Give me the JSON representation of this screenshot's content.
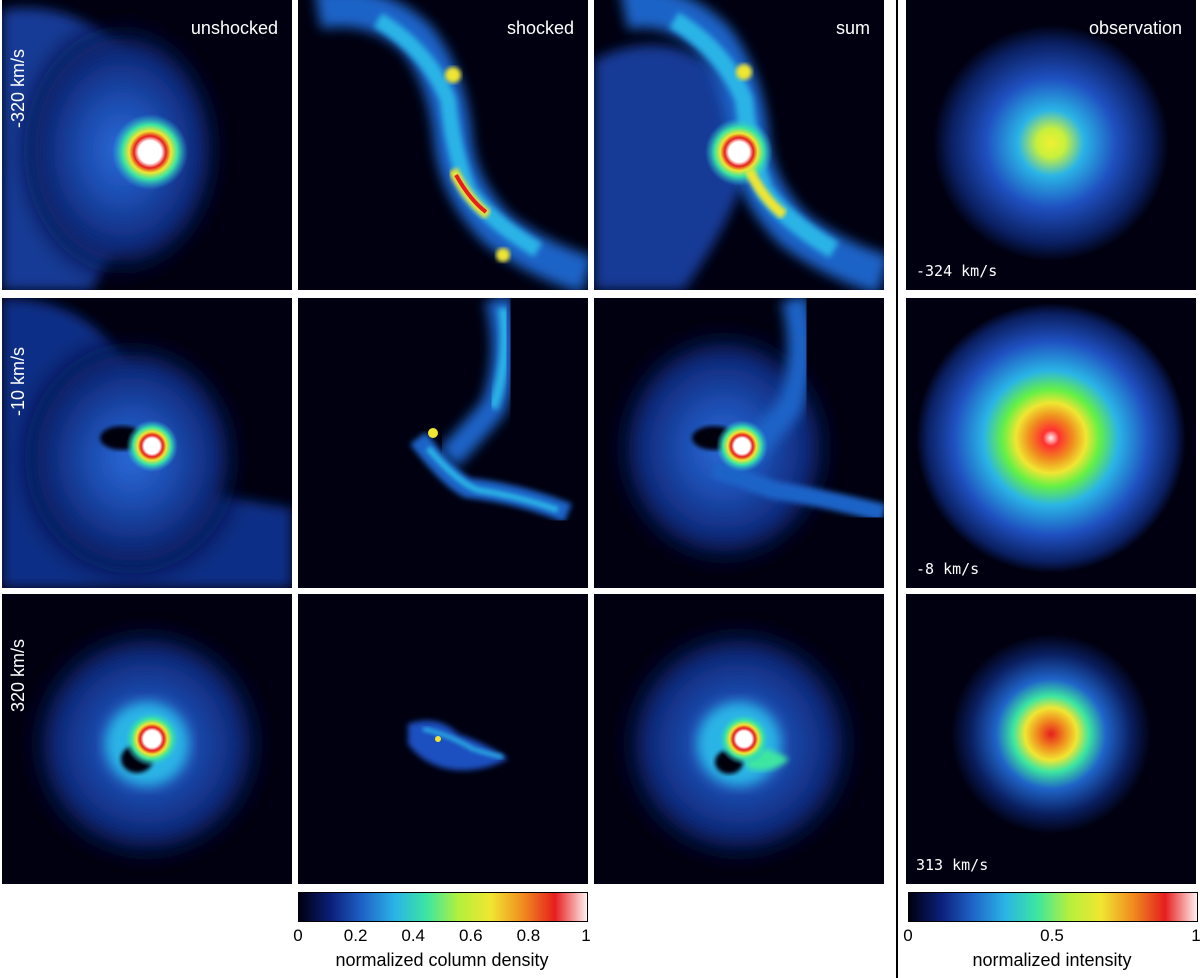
{
  "columns": {
    "unshocked": "unshocked",
    "shocked": "shocked",
    "sum": "sum",
    "observation": "observation"
  },
  "rows": [
    {
      "sim_velocity": "-320 km/s",
      "obs_velocity": "-324 km/s"
    },
    {
      "sim_velocity": "-10 km/s",
      "obs_velocity": "-8 km/s"
    },
    {
      "sim_velocity": "320 km/s",
      "obs_velocity": "313 km/s"
    }
  ],
  "colorbar_left": {
    "title": "normalized column density",
    "ticks": [
      "0",
      "0.2",
      "0.4",
      "0.6",
      "0.8",
      "1"
    ]
  },
  "colorbar_right": {
    "title": "normalized intensity",
    "ticks": [
      "0",
      "0.5",
      "1"
    ]
  },
  "colormap": [
    "#000010",
    "#0a1f7a",
    "#1f64c8",
    "#2ab4e6",
    "#3ce6a0",
    "#b4f03c",
    "#f0e632",
    "#f08c1e",
    "#e61e1e",
    "#fff0f0"
  ]
}
